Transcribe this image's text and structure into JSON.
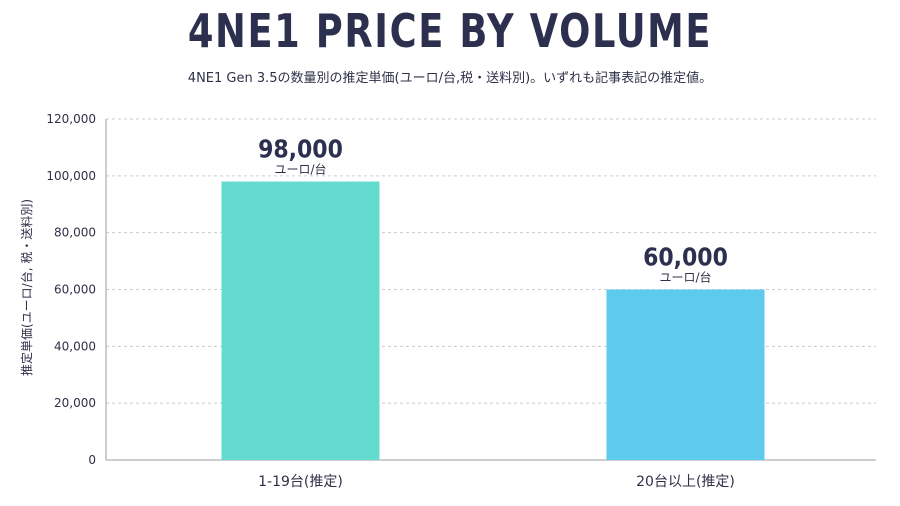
{
  "title": "4NE1 PRICE BY VOLUME",
  "subtitle": "4NE1 Gen 3.5の数量別の推定単価(ユーロ/台,税・送料別)。いずれも記事表記の推定値。",
  "chart_data": {
    "type": "bar",
    "categories": [
      "1-19台(推定)",
      "20台以上(推定)"
    ],
    "values": [
      98000,
      60000
    ],
    "value_labels": [
      "98,000",
      "60,000"
    ],
    "unit_label": "ユーロ/台",
    "ylabel": "推定単価(ユーロ/台, 税・送料別)",
    "ylim": [
      0,
      120000
    ],
    "yticks": [
      0,
      20000,
      40000,
      60000,
      80000,
      100000,
      120000
    ],
    "ytick_labels": [
      "0",
      "20,000",
      "40,000",
      "60,000",
      "80,000",
      "100,000",
      "120,000"
    ],
    "grid": true,
    "colors": [
      "#63dccf",
      "#5ecbee"
    ]
  }
}
